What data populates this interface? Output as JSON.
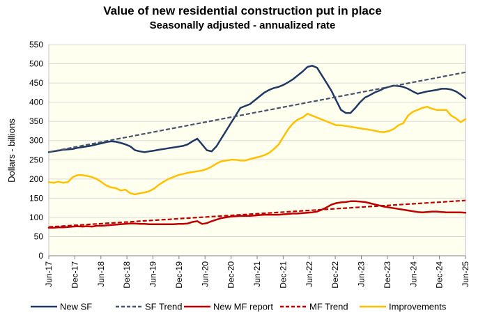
{
  "chart_data": {
    "type": "line",
    "title": "Value of new residential construction put in place",
    "subtitle": "Seasonally adjusted - annualized rate",
    "xlabel": "",
    "ylabel": "Dollars - billions",
    "ylim": [
      0,
      550
    ],
    "yticks": [
      0,
      50,
      100,
      150,
      200,
      250,
      300,
      350,
      400,
      450,
      500,
      550
    ],
    "x_start": "Jun-17",
    "x_end": "Jun-25",
    "xtick_labels": [
      "Jun-17",
      "Dec-17",
      "Jun-18",
      "Dec-18",
      "Jun-19",
      "Dec-19",
      "Jun-20",
      "Dec-20",
      "Jun-21",
      "Dec-21",
      "Jun-22",
      "Dec-22",
      "Jun-23",
      "Dec-23",
      "Jun-24",
      "Dec-24",
      "Jun-25"
    ],
    "grid": true,
    "legend_position": "bottom",
    "series": [
      {
        "name": "New SF",
        "color": "#1F3864",
        "style": "solid",
        "values": [
          270,
          272,
          274,
          276,
          277,
          278,
          281,
          283,
          285,
          287,
          290,
          293,
          296,
          298,
          297,
          294,
          290,
          285,
          275,
          272,
          270,
          272,
          274,
          276,
          278,
          280,
          282,
          284,
          286,
          290,
          298,
          305,
          290,
          275,
          272,
          285,
          305,
          325,
          345,
          365,
          385,
          390,
          395,
          405,
          415,
          425,
          432,
          437,
          440,
          445,
          452,
          460,
          470,
          480,
          492,
          495,
          490,
          470,
          450,
          430,
          405,
          380,
          372,
          372,
          385,
          400,
          412,
          418,
          425,
          430,
          436,
          440,
          443,
          442,
          440,
          435,
          428,
          422,
          425,
          428,
          430,
          432,
          435,
          435,
          433,
          428,
          420,
          410
        ]
      },
      {
        "name": "SF Trend",
        "color": "#44546A",
        "style": "dashed",
        "values_linear": [
          270,
          478
        ]
      },
      {
        "name": "New MF report",
        "color": "#C00000",
        "style": "solid",
        "values": [
          73,
          73,
          74,
          74,
          75,
          76,
          77,
          76,
          77,
          76,
          78,
          78,
          79,
          80,
          81,
          82,
          83,
          84,
          84,
          83,
          83,
          82,
          82,
          82,
          82,
          82,
          82,
          83,
          83,
          84,
          88,
          90,
          83,
          85,
          90,
          94,
          98,
          100,
          102,
          103,
          104,
          104,
          104,
          105,
          106,
          107,
          107,
          107,
          107,
          108,
          109,
          110,
          110,
          111,
          112,
          113,
          115,
          120,
          126,
          133,
          137,
          139,
          140,
          142,
          142,
          141,
          140,
          137,
          134,
          131,
          128,
          126,
          124,
          122,
          120,
          118,
          116,
          114,
          113,
          114,
          115,
          115,
          114,
          113,
          113,
          113,
          113,
          112
        ]
      },
      {
        "name": "MF Trend",
        "color": "#C00000",
        "style": "dashed",
        "values_linear": [
          75,
          144
        ]
      },
      {
        "name": "Improvements",
        "color": "#FFC000",
        "style": "solid",
        "values": [
          192,
          190,
          193,
          190,
          192,
          205,
          210,
          210,
          208,
          205,
          200,
          192,
          183,
          178,
          176,
          170,
          172,
          163,
          160,
          163,
          165,
          168,
          175,
          185,
          193,
          200,
          205,
          210,
          213,
          216,
          218,
          220,
          222,
          226,
          232,
          240,
          246,
          248,
          250,
          250,
          248,
          248,
          252,
          255,
          258,
          262,
          268,
          278,
          290,
          310,
          330,
          345,
          355,
          360,
          370,
          365,
          360,
          355,
          350,
          345,
          340,
          340,
          338,
          336,
          334,
          332,
          330,
          328,
          326,
          323,
          322,
          325,
          330,
          340,
          345,
          365,
          375,
          380,
          385,
          388,
          383,
          380,
          380,
          380,
          365,
          358,
          348,
          356
        ]
      }
    ]
  }
}
